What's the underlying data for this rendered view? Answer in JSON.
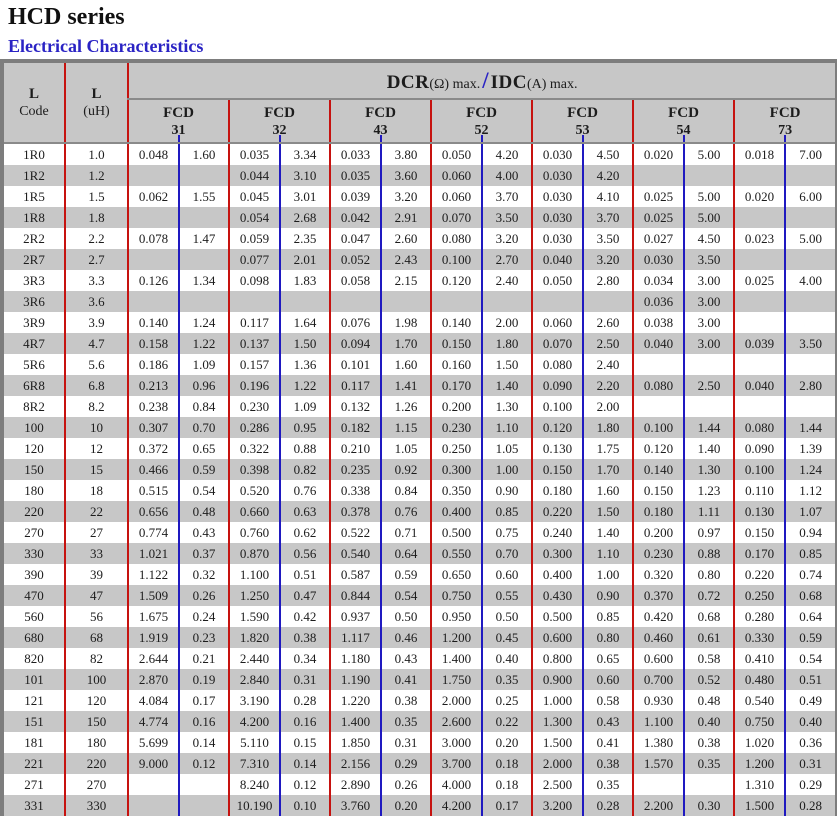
{
  "page": {
    "title": "HCD series",
    "subtitle": "Electrical Characteristics"
  },
  "colors": {
    "group_separator_red": "#c6120f",
    "subcolumn_separator_blue": "#1f19c0",
    "subtitle_blue": "#2a23c4",
    "header_bg": "#c7c7c7",
    "alt_row_bg": "#c7c7c7",
    "outer_border_gray": "#7d7d7d"
  },
  "table": {
    "col1_header": {
      "line1": "L",
      "line2": "Code"
    },
    "col2_header": {
      "line1": "L",
      "line2": "(uH)"
    },
    "span_header": {
      "dcr": "DCR",
      "dcr_unit": "(Ω) max.",
      "slash": "/",
      "idc": "IDC",
      "idc_unit": "(A) max."
    },
    "groups": [
      {
        "name": "FCD",
        "code": "31"
      },
      {
        "name": "FCD",
        "code": "32"
      },
      {
        "name": "FCD",
        "code": "43"
      },
      {
        "name": "FCD",
        "code": "52"
      },
      {
        "name": "FCD",
        "code": "53"
      },
      {
        "name": "FCD",
        "code": "54"
      },
      {
        "name": "FCD",
        "code": "73"
      }
    ],
    "rows": [
      {
        "code": "1R0",
        "uh": "1.0",
        "values": [
          "0.048",
          "1.60",
          "0.035",
          "3.34",
          "0.033",
          "3.80",
          "0.050",
          "4.20",
          "0.030",
          "4.50",
          "0.020",
          "5.00",
          "0.018",
          "7.00"
        ]
      },
      {
        "code": "1R2",
        "uh": "1.2",
        "values": [
          "",
          "",
          "0.044",
          "3.10",
          "0.035",
          "3.60",
          "0.060",
          "4.00",
          "0.030",
          "4.20",
          "",
          "",
          "",
          ""
        ]
      },
      {
        "code": "1R5",
        "uh": "1.5",
        "values": [
          "0.062",
          "1.55",
          "0.045",
          "3.01",
          "0.039",
          "3.20",
          "0.060",
          "3.70",
          "0.030",
          "4.10",
          "0.025",
          "5.00",
          "0.020",
          "6.00"
        ]
      },
      {
        "code": "1R8",
        "uh": "1.8",
        "values": [
          "",
          "",
          "0.054",
          "2.68",
          "0.042",
          "2.91",
          "0.070",
          "3.50",
          "0.030",
          "3.70",
          "0.025",
          "5.00",
          "",
          ""
        ]
      },
      {
        "code": "2R2",
        "uh": "2.2",
        "values": [
          "0.078",
          "1.47",
          "0.059",
          "2.35",
          "0.047",
          "2.60",
          "0.080",
          "3.20",
          "0.030",
          "3.50",
          "0.027",
          "4.50",
          "0.023",
          "5.00"
        ]
      },
      {
        "code": "2R7",
        "uh": "2.7",
        "values": [
          "",
          "",
          "0.077",
          "2.01",
          "0.052",
          "2.43",
          "0.100",
          "2.70",
          "0.040",
          "3.20",
          "0.030",
          "3.50",
          "",
          ""
        ]
      },
      {
        "code": "3R3",
        "uh": "3.3",
        "values": [
          "0.126",
          "1.34",
          "0.098",
          "1.83",
          "0.058",
          "2.15",
          "0.120",
          "2.40",
          "0.050",
          "2.80",
          "0.034",
          "3.00",
          "0.025",
          "4.00"
        ]
      },
      {
        "code": "3R6",
        "uh": "3.6",
        "values": [
          "",
          "",
          "",
          "",
          "",
          "",
          "",
          "",
          "",
          "",
          "0.036",
          "3.00",
          "",
          ""
        ]
      },
      {
        "code": "3R9",
        "uh": "3.9",
        "values": [
          "0.140",
          "1.24",
          "0.117",
          "1.64",
          "0.076",
          "1.98",
          "0.140",
          "2.00",
          "0.060",
          "2.60",
          "0.038",
          "3.00",
          "",
          ""
        ]
      },
      {
        "code": "4R7",
        "uh": "4.7",
        "values": [
          "0.158",
          "1.22",
          "0.137",
          "1.50",
          "0.094",
          "1.70",
          "0.150",
          "1.80",
          "0.070",
          "2.50",
          "0.040",
          "3.00",
          "0.039",
          "3.50"
        ]
      },
      {
        "code": "5R6",
        "uh": "5.6",
        "values": [
          "0.186",
          "1.09",
          "0.157",
          "1.36",
          "0.101",
          "1.60",
          "0.160",
          "1.50",
          "0.080",
          "2.40",
          "",
          "",
          "",
          ""
        ]
      },
      {
        "code": "6R8",
        "uh": "6.8",
        "values": [
          "0.213",
          "0.96",
          "0.196",
          "1.22",
          "0.117",
          "1.41",
          "0.170",
          "1.40",
          "0.090",
          "2.20",
          "0.080",
          "2.50",
          "0.040",
          "2.80"
        ]
      },
      {
        "code": "8R2",
        "uh": "8.2",
        "values": [
          "0.238",
          "0.84",
          "0.230",
          "1.09",
          "0.132",
          "1.26",
          "0.200",
          "1.30",
          "0.100",
          "2.00",
          "",
          "",
          "",
          ""
        ]
      },
      {
        "code": "100",
        "uh": "10",
        "values": [
          "0.307",
          "0.70",
          "0.286",
          "0.95",
          "0.182",
          "1.15",
          "0.230",
          "1.10",
          "0.120",
          "1.80",
          "0.100",
          "1.44",
          "0.080",
          "1.44"
        ]
      },
      {
        "code": "120",
        "uh": "12",
        "values": [
          "0.372",
          "0.65",
          "0.322",
          "0.88",
          "0.210",
          "1.05",
          "0.250",
          "1.05",
          "0.130",
          "1.75",
          "0.120",
          "1.40",
          "0.090",
          "1.39"
        ]
      },
      {
        "code": "150",
        "uh": "15",
        "values": [
          "0.466",
          "0.59",
          "0.398",
          "0.82",
          "0.235",
          "0.92",
          "0.300",
          "1.00",
          "0.150",
          "1.70",
          "0.140",
          "1.30",
          "0.100",
          "1.24"
        ]
      },
      {
        "code": "180",
        "uh": "18",
        "values": [
          "0.515",
          "0.54",
          "0.520",
          "0.76",
          "0.338",
          "0.84",
          "0.350",
          "0.90",
          "0.180",
          "1.60",
          "0.150",
          "1.23",
          "0.110",
          "1.12"
        ]
      },
      {
        "code": "220",
        "uh": "22",
        "values": [
          "0.656",
          "0.48",
          "0.660",
          "0.63",
          "0.378",
          "0.76",
          "0.400",
          "0.85",
          "0.220",
          "1.50",
          "0.180",
          "1.11",
          "0.130",
          "1.07"
        ]
      },
      {
        "code": "270",
        "uh": "27",
        "values": [
          "0.774",
          "0.43",
          "0.760",
          "0.62",
          "0.522",
          "0.71",
          "0.500",
          "0.75",
          "0.240",
          "1.40",
          "0.200",
          "0.97",
          "0.150",
          "0.94"
        ]
      },
      {
        "code": "330",
        "uh": "33",
        "values": [
          "1.021",
          "0.37",
          "0.870",
          "0.56",
          "0.540",
          "0.64",
          "0.550",
          "0.70",
          "0.300",
          "1.10",
          "0.230",
          "0.88",
          "0.170",
          "0.85"
        ]
      },
      {
        "code": "390",
        "uh": "39",
        "values": [
          "1.122",
          "0.32",
          "1.100",
          "0.51",
          "0.587",
          "0.59",
          "0.650",
          "0.60",
          "0.400",
          "1.00",
          "0.320",
          "0.80",
          "0.220",
          "0.74"
        ]
      },
      {
        "code": "470",
        "uh": "47",
        "values": [
          "1.509",
          "0.26",
          "1.250",
          "0.47",
          "0.844",
          "0.54",
          "0.750",
          "0.55",
          "0.430",
          "0.90",
          "0.370",
          "0.72",
          "0.250",
          "0.68"
        ]
      },
      {
        "code": "560",
        "uh": "56",
        "values": [
          "1.675",
          "0.24",
          "1.590",
          "0.42",
          "0.937",
          "0.50",
          "0.950",
          "0.50",
          "0.500",
          "0.85",
          "0.420",
          "0.68",
          "0.280",
          "0.64"
        ]
      },
      {
        "code": "680",
        "uh": "68",
        "values": [
          "1.919",
          "0.23",
          "1.820",
          "0.38",
          "1.117",
          "0.46",
          "1.200",
          "0.45",
          "0.600",
          "0.80",
          "0.460",
          "0.61",
          "0.330",
          "0.59"
        ]
      },
      {
        "code": "820",
        "uh": "82",
        "values": [
          "2.644",
          "0.21",
          "2.440",
          "0.34",
          "1.180",
          "0.43",
          "1.400",
          "0.40",
          "0.800",
          "0.65",
          "0.600",
          "0.58",
          "0.410",
          "0.54"
        ]
      },
      {
        "code": "101",
        "uh": "100",
        "values": [
          "2.870",
          "0.19",
          "2.840",
          "0.31",
          "1.190",
          "0.41",
          "1.750",
          "0.35",
          "0.900",
          "0.60",
          "0.700",
          "0.52",
          "0.480",
          "0.51"
        ]
      },
      {
        "code": "121",
        "uh": "120",
        "values": [
          "4.084",
          "0.17",
          "3.190",
          "0.28",
          "1.220",
          "0.38",
          "2.000",
          "0.25",
          "1.000",
          "0.58",
          "0.930",
          "0.48",
          "0.540",
          "0.49"
        ]
      },
      {
        "code": "151",
        "uh": "150",
        "values": [
          "4.774",
          "0.16",
          "4.200",
          "0.16",
          "1.400",
          "0.35",
          "2.600",
          "0.22",
          "1.300",
          "0.43",
          "1.100",
          "0.40",
          "0.750",
          "0.40"
        ]
      },
      {
        "code": "181",
        "uh": "180",
        "values": [
          "5.699",
          "0.14",
          "5.110",
          "0.15",
          "1.850",
          "0.31",
          "3.000",
          "0.20",
          "1.500",
          "0.41",
          "1.380",
          "0.38",
          "1.020",
          "0.36"
        ]
      },
      {
        "code": "221",
        "uh": "220",
        "values": [
          "9.000",
          "0.12",
          "7.310",
          "0.14",
          "2.156",
          "0.29",
          "3.700",
          "0.18",
          "2.000",
          "0.38",
          "1.570",
          "0.35",
          "1.200",
          "0.31"
        ]
      },
      {
        "code": "271",
        "uh": "270",
        "values": [
          "",
          "",
          "8.240",
          "0.12",
          "2.890",
          "0.26",
          "4.000",
          "0.18",
          "2.500",
          "0.35",
          "",
          "",
          "1.310",
          "0.29"
        ]
      },
      {
        "code": "331",
        "uh": "330",
        "values": [
          "",
          "",
          "10.190",
          "0.10",
          "3.760",
          "0.20",
          "4.200",
          "0.17",
          "3.200",
          "0.28",
          "2.200",
          "0.30",
          "1.500",
          "0.28"
        ]
      }
    ]
  }
}
